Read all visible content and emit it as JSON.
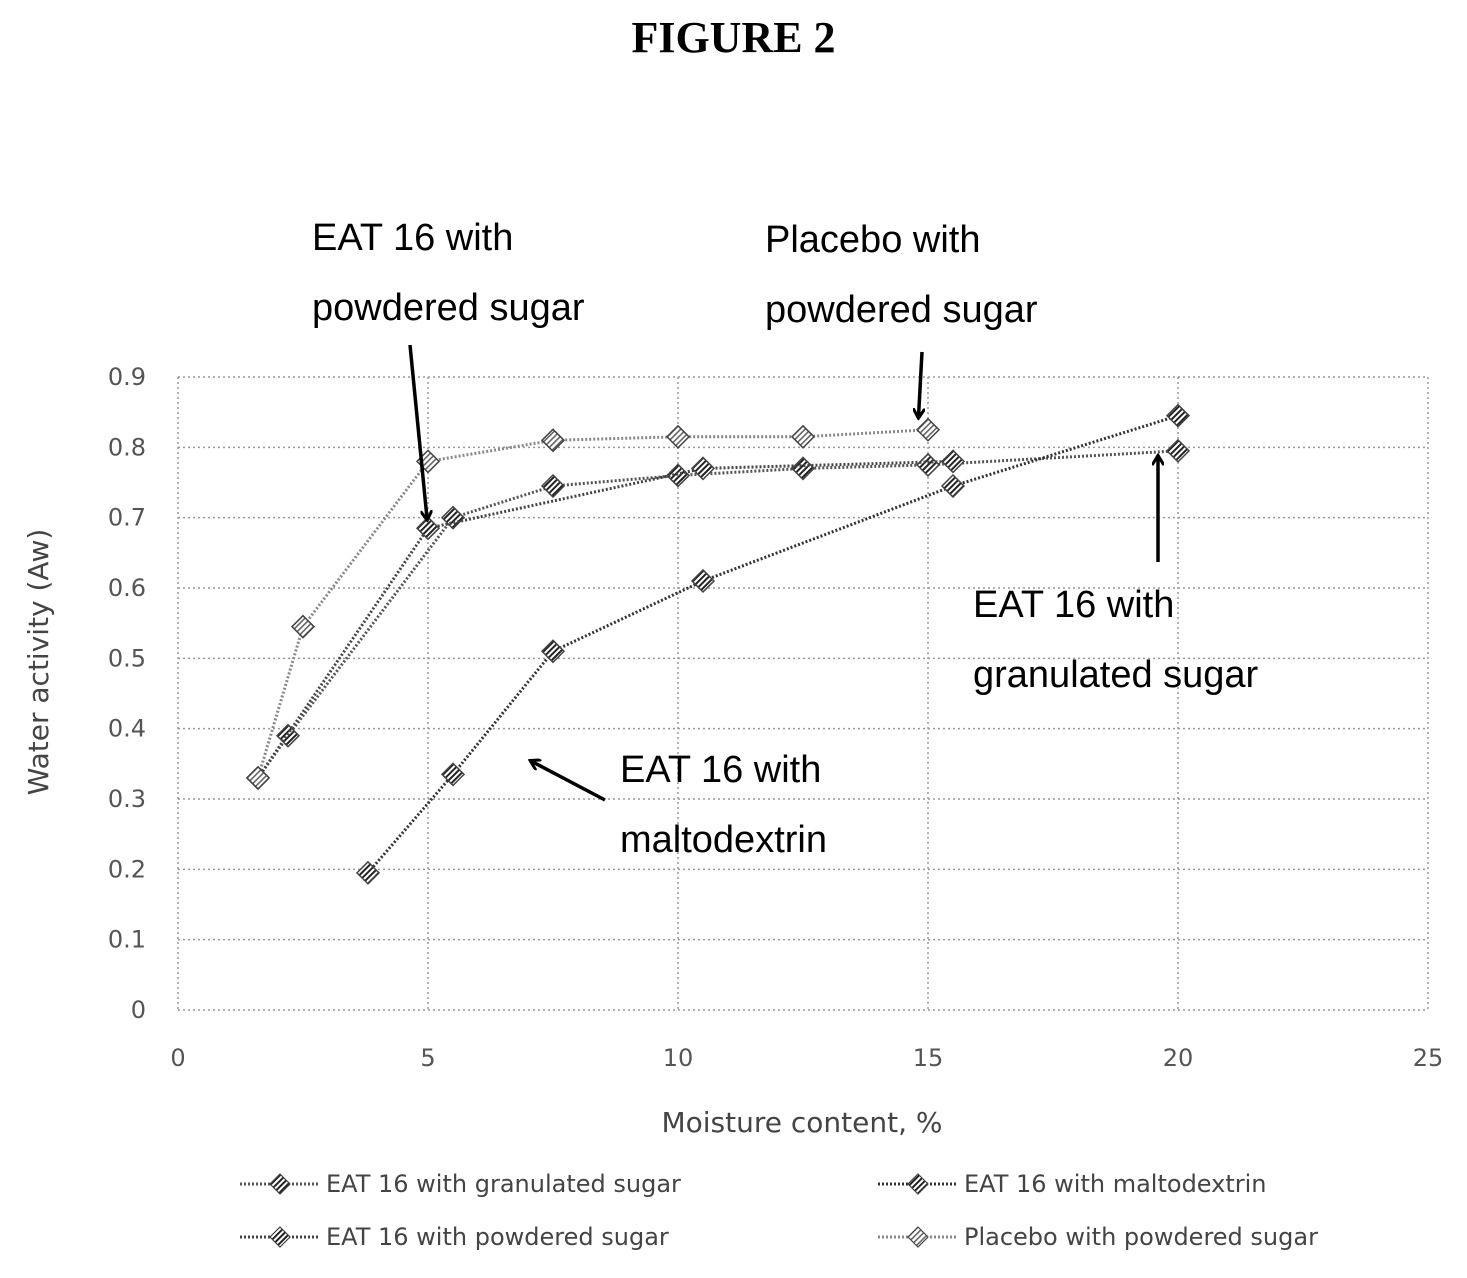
{
  "figure": {
    "title": "FIGURE 2"
  },
  "chart_data": {
    "type": "line",
    "title": "",
    "xlabel": "Moisture content, %",
    "ylabel": "Water activity (Aw)",
    "xlim": [
      0,
      25
    ],
    "ylim": [
      0,
      0.9
    ],
    "xticks": [
      "0",
      "5",
      "10",
      "15",
      "20",
      "25"
    ],
    "yticks": [
      "0",
      "0.1",
      "0.2",
      "0.3",
      "0.4",
      "0.5",
      "0.6",
      "0.7",
      "0.8",
      "0.9"
    ],
    "grid": true,
    "legend_position": "bottom",
    "series": [
      {
        "name": "EAT 16 with granulated sugar",
        "color": "#555555",
        "x": [
          1.6,
          2.2,
          5.5,
          7.5,
          10.0,
          12.5,
          15.0,
          20.0
        ],
        "y": [
          0.33,
          0.39,
          0.7,
          0.745,
          0.76,
          0.77,
          0.775,
          0.795
        ]
      },
      {
        "name": "EAT 16 with maltodextrin",
        "color": "#333333",
        "x": [
          3.8,
          5.5,
          7.5,
          10.5,
          15.5,
          20.0
        ],
        "y": [
          0.195,
          0.335,
          0.51,
          0.61,
          0.745,
          0.845
        ]
      },
      {
        "name": "EAT 16 with powdered sugar",
        "color": "#444444",
        "x": [
          1.6,
          5.0,
          10.5,
          15.5
        ],
        "y": [
          0.33,
          0.685,
          0.77,
          0.78
        ]
      },
      {
        "name": "Placebo with powdered sugar",
        "color": "#888888",
        "x": [
          1.6,
          2.5,
          5.0,
          7.5,
          10.0,
          12.5,
          15.0
        ],
        "y": [
          0.33,
          0.545,
          0.78,
          0.81,
          0.815,
          0.815,
          0.825
        ]
      }
    ],
    "annotations": [
      {
        "id": "powdered",
        "lines": [
          "EAT 16 with",
          "powdered sugar"
        ],
        "target": [
          5.0,
          0.685
        ]
      },
      {
        "id": "placebo",
        "lines": [
          "Placebo with",
          "powdered sugar"
        ],
        "target": [
          14.8,
          0.83
        ]
      },
      {
        "id": "granulated",
        "lines": [
          "EAT 16 with",
          "granulated sugar"
        ],
        "target": [
          19.6,
          0.8
        ]
      },
      {
        "id": "maltodextrin",
        "lines": [
          "EAT 16 with",
          "maltodextrin"
        ],
        "target": [
          6.9,
          0.36
        ]
      }
    ]
  }
}
